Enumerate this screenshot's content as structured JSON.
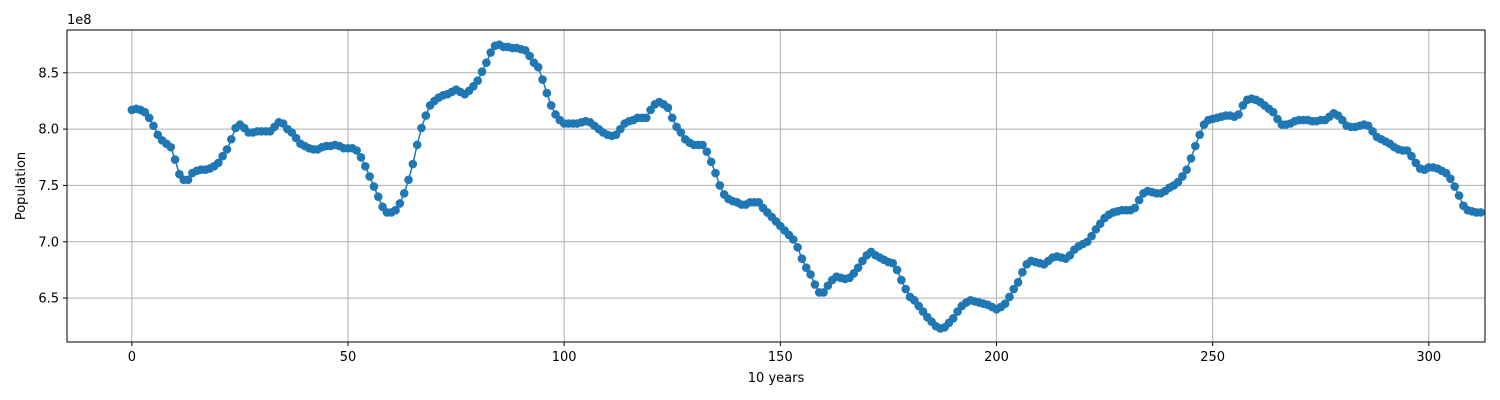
{
  "chart_data": {
    "type": "line",
    "xlabel": "10 years",
    "ylabel": "Population",
    "y_offset_label": "1e8",
    "xlim": [
      -15,
      313
    ],
    "ylim": [
      6.11,
      8.88
    ],
    "x_ticks": [
      0,
      50,
      100,
      150,
      200,
      250,
      300
    ],
    "x_tick_labels": [
      "0",
      "50",
      "100",
      "150",
      "200",
      "250",
      "300"
    ],
    "y_ticks": [
      6.5,
      7.0,
      7.5,
      8.0,
      8.5
    ],
    "y_tick_labels": [
      "6.5",
      "7.0",
      "7.5",
      "8.0",
      "8.5"
    ],
    "grid": true,
    "line_color": "#1f77b4",
    "marker": "circle",
    "series": [
      {
        "values": [
          8.17,
          8.18,
          8.17,
          8.15,
          8.1,
          8.03,
          7.95,
          7.9,
          7.87,
          7.84,
          7.73,
          7.6,
          7.55,
          7.55,
          7.61,
          7.63,
          7.64,
          7.64,
          7.65,
          7.67,
          7.7,
          7.76,
          7.82,
          7.91,
          8.01,
          8.04,
          8.01,
          7.97,
          7.97,
          7.98,
          7.98,
          7.98,
          7.98,
          8.02,
          8.06,
          8.05,
          8.0,
          7.97,
          7.92,
          7.87,
          7.85,
          7.83,
          7.82,
          7.82,
          7.84,
          7.85,
          7.85,
          7.86,
          7.85,
          7.83,
          7.83,
          7.83,
          7.81,
          7.75,
          7.67,
          7.58,
          7.49,
          7.4,
          7.31,
          7.26,
          7.26,
          7.28,
          7.34,
          7.43,
          7.55,
          7.69,
          7.86,
          8.01,
          8.12,
          8.21,
          8.25,
          8.28,
          8.3,
          8.31,
          8.33,
          8.35,
          8.33,
          8.31,
          8.34,
          8.38,
          8.43,
          8.51,
          8.59,
          8.68,
          8.74,
          8.75,
          8.73,
          8.73,
          8.72,
          8.72,
          8.71,
          8.7,
          8.65,
          8.59,
          8.55,
          8.44,
          8.32,
          8.21,
          8.13,
          8.08,
          8.05,
          8.05,
          8.05,
          8.05,
          8.06,
          8.07,
          8.06,
          8.03,
          8.0,
          7.97,
          7.95,
          7.94,
          7.95,
          8.0,
          8.05,
          8.07,
          8.08,
          8.1,
          8.1,
          8.1,
          8.17,
          8.22,
          8.24,
          8.22,
          8.19,
          8.1,
          8.02,
          7.97,
          7.91,
          7.88,
          7.86,
          7.86,
          7.86,
          7.8,
          7.71,
          7.61,
          7.5,
          7.42,
          7.38,
          7.36,
          7.35,
          7.33,
          7.33,
          7.35,
          7.35,
          7.35,
          7.3,
          7.26,
          7.22,
          7.18,
          7.14,
          7.1,
          7.06,
          7.02,
          6.95,
          6.85,
          6.77,
          6.71,
          6.62,
          6.55,
          6.55,
          6.61,
          6.66,
          6.69,
          6.68,
          6.67,
          6.68,
          6.72,
          6.77,
          6.83,
          6.88,
          6.91,
          6.88,
          6.86,
          6.84,
          6.82,
          6.81,
          6.75,
          6.66,
          6.58,
          6.51,
          6.48,
          6.43,
          6.38,
          6.33,
          6.29,
          6.25,
          6.23,
          6.24,
          6.28,
          6.32,
          6.38,
          6.43,
          6.46,
          6.48,
          6.47,
          6.46,
          6.45,
          6.44,
          6.42,
          6.4,
          6.42,
          6.45,
          6.51,
          6.58,
          6.64,
          6.73,
          6.8,
          6.83,
          6.82,
          6.81,
          6.8,
          6.83,
          6.86,
          6.87,
          6.86,
          6.85,
          6.88,
          6.93,
          6.96,
          6.98,
          7.0,
          7.05,
          7.11,
          7.16,
          7.21,
          7.24,
          7.26,
          7.27,
          7.28,
          7.28,
          7.28,
          7.3,
          7.37,
          7.43,
          7.45,
          7.44,
          7.43,
          7.43,
          7.45,
          7.48,
          7.5,
          7.53,
          7.58,
          7.64,
          7.74,
          7.85,
          7.95,
          8.04,
          8.08,
          8.09,
          8.1,
          8.11,
          8.12,
          8.12,
          8.11,
          8.13,
          8.21,
          8.26,
          8.27,
          8.26,
          8.24,
          8.21,
          8.18,
          8.15,
          8.09,
          8.04,
          8.04,
          8.05,
          8.07,
          8.08,
          8.08,
          8.08,
          8.07,
          8.07,
          8.08,
          8.08,
          8.11,
          8.14,
          8.12,
          8.08,
          8.03,
          8.02,
          8.02,
          8.03,
          8.04,
          8.03,
          7.98,
          7.93,
          7.91,
          7.89,
          7.87,
          7.84,
          7.82,
          7.81,
          7.81,
          7.76,
          7.7,
          7.65,
          7.64,
          7.66,
          7.66,
          7.65,
          7.63,
          7.61,
          7.56,
          7.49,
          7.41,
          7.32,
          7.28,
          7.27,
          7.26,
          7.26
        ]
      }
    ]
  }
}
